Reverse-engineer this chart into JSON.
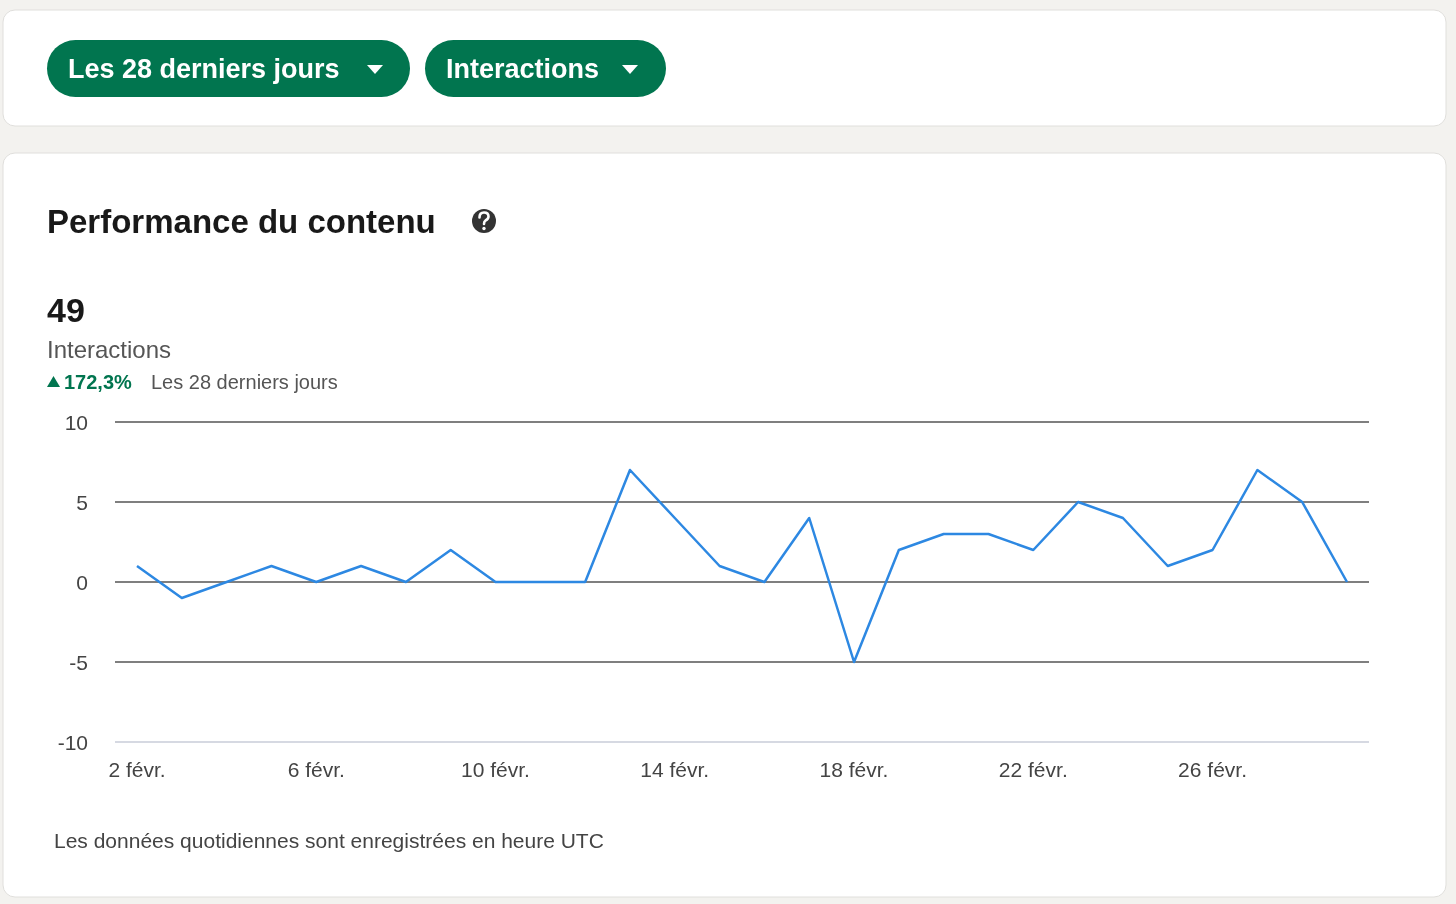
{
  "chart_data": {
    "type": "line",
    "title": "Performance du contenu",
    "categories": [
      "2 févr.",
      null,
      null,
      null,
      "6 févr.",
      null,
      null,
      null,
      "10 févr.",
      null,
      null,
      null,
      "14 févr.",
      null,
      null,
      null,
      "18 févr.",
      null,
      null,
      null,
      "22 févr.",
      null,
      null,
      null,
      "26 févr.",
      null,
      null,
      null
    ],
    "series": [
      {
        "color": "#2d88e2",
        "values": [
          1,
          -1,
          0,
          1,
          0,
          1,
          0,
          2,
          0,
          0,
          0,
          7,
          4,
          1,
          0,
          4,
          -5,
          2,
          3,
          3,
          2,
          5,
          4,
          1,
          2,
          7,
          5,
          0
        ]
      }
    ],
    "ylim": [
      -10,
      10
    ],
    "yticks": [
      -10,
      -5,
      0,
      5,
      10
    ],
    "grid": "y",
    "marker": "none",
    "line_style": "solid",
    "annotations": [
      "Les 28 derniers jours",
      "Interactions",
      "49",
      "Interactions",
      "172,3%",
      "Les 28 derniers jours",
      "Les données quotidiennes sont enregistrées en heure UTC"
    ]
  }
}
